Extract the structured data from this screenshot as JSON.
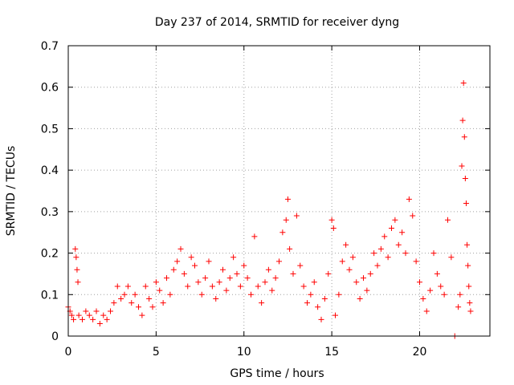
{
  "chart_data": {
    "type": "scatter",
    "title": "Day 237 of 2014, SRMTID for receiver dyng",
    "xlabel": "GPS time / hours",
    "ylabel": "SRMTID / TECUs",
    "xlim": [
      0,
      24
    ],
    "ylim": [
      0,
      0.7
    ],
    "xticks": [
      0,
      5,
      10,
      15,
      20
    ],
    "yticks": [
      0,
      0.1,
      0.2,
      0.3,
      0.4,
      0.5,
      0.6,
      0.7
    ],
    "xtick_labels": [
      "0",
      "5",
      "10",
      "15",
      "20"
    ],
    "ytick_labels": [
      "0",
      "0.1",
      "0.2",
      "0.3",
      "0.4",
      "0.5",
      "0.6",
      "0.7"
    ],
    "grid": true,
    "marker": "+",
    "series": [
      {
        "name": "SRMTID",
        "color": "#ff0000",
        "points": [
          [
            0.0,
            0.07
          ],
          [
            0.1,
            0.06
          ],
          [
            0.2,
            0.05
          ],
          [
            0.3,
            0.04
          ],
          [
            0.4,
            0.21
          ],
          [
            0.45,
            0.19
          ],
          [
            0.5,
            0.16
          ],
          [
            0.55,
            0.13
          ],
          [
            0.6,
            0.05
          ],
          [
            0.8,
            0.04
          ],
          [
            1.0,
            0.06
          ],
          [
            1.2,
            0.05
          ],
          [
            1.4,
            0.04
          ],
          [
            1.6,
            0.06
          ],
          [
            1.8,
            0.03
          ],
          [
            2.0,
            0.05
          ],
          [
            2.2,
            0.04
          ],
          [
            2.4,
            0.06
          ],
          [
            2.6,
            0.08
          ],
          [
            2.8,
            0.12
          ],
          [
            3.0,
            0.09
          ],
          [
            3.2,
            0.1
          ],
          [
            3.4,
            0.12
          ],
          [
            3.6,
            0.08
          ],
          [
            3.8,
            0.1
          ],
          [
            4.0,
            0.07
          ],
          [
            4.2,
            0.05
          ],
          [
            4.4,
            0.12
          ],
          [
            4.6,
            0.09
          ],
          [
            4.8,
            0.07
          ],
          [
            5.0,
            0.13
          ],
          [
            5.2,
            0.11
          ],
          [
            5.4,
            0.08
          ],
          [
            5.6,
            0.14
          ],
          [
            5.8,
            0.1
          ],
          [
            6.0,
            0.16
          ],
          [
            6.2,
            0.18
          ],
          [
            6.4,
            0.21
          ],
          [
            6.6,
            0.15
          ],
          [
            6.8,
            0.12
          ],
          [
            7.0,
            0.19
          ],
          [
            7.2,
            0.17
          ],
          [
            7.4,
            0.13
          ],
          [
            7.6,
            0.1
          ],
          [
            7.8,
            0.14
          ],
          [
            8.0,
            0.18
          ],
          [
            8.2,
            0.12
          ],
          [
            8.4,
            0.09
          ],
          [
            8.6,
            0.13
          ],
          [
            8.8,
            0.16
          ],
          [
            9.0,
            0.11
          ],
          [
            9.2,
            0.14
          ],
          [
            9.4,
            0.19
          ],
          [
            9.6,
            0.15
          ],
          [
            9.8,
            0.12
          ],
          [
            10.0,
            0.17
          ],
          [
            10.2,
            0.14
          ],
          [
            10.4,
            0.1
          ],
          [
            10.6,
            0.24
          ],
          [
            10.8,
            0.12
          ],
          [
            11.0,
            0.08
          ],
          [
            11.2,
            0.13
          ],
          [
            11.4,
            0.16
          ],
          [
            11.6,
            0.11
          ],
          [
            11.8,
            0.14
          ],
          [
            12.0,
            0.18
          ],
          [
            12.2,
            0.25
          ],
          [
            12.4,
            0.28
          ],
          [
            12.5,
            0.33
          ],
          [
            12.6,
            0.21
          ],
          [
            12.8,
            0.15
          ],
          [
            13.0,
            0.29
          ],
          [
            13.2,
            0.17
          ],
          [
            13.4,
            0.12
          ],
          [
            13.6,
            0.08
          ],
          [
            13.8,
            0.1
          ],
          [
            14.0,
            0.13
          ],
          [
            14.2,
            0.07
          ],
          [
            14.4,
            0.04
          ],
          [
            14.6,
            0.09
          ],
          [
            14.8,
            0.15
          ],
          [
            15.0,
            0.28
          ],
          [
            15.1,
            0.26
          ],
          [
            15.2,
            0.05
          ],
          [
            15.4,
            0.1
          ],
          [
            15.6,
            0.18
          ],
          [
            15.8,
            0.22
          ],
          [
            16.0,
            0.16
          ],
          [
            16.2,
            0.19
          ],
          [
            16.4,
            0.13
          ],
          [
            16.6,
            0.09
          ],
          [
            16.8,
            0.14
          ],
          [
            17.0,
            0.11
          ],
          [
            17.2,
            0.15
          ],
          [
            17.4,
            0.2
          ],
          [
            17.6,
            0.17
          ],
          [
            17.8,
            0.21
          ],
          [
            18.0,
            0.24
          ],
          [
            18.2,
            0.19
          ],
          [
            18.4,
            0.26
          ],
          [
            18.6,
            0.28
          ],
          [
            18.8,
            0.22
          ],
          [
            19.0,
            0.25
          ],
          [
            19.2,
            0.2
          ],
          [
            19.4,
            0.33
          ],
          [
            19.6,
            0.29
          ],
          [
            19.8,
            0.18
          ],
          [
            20.0,
            0.13
          ],
          [
            20.2,
            0.09
          ],
          [
            20.4,
            0.06
          ],
          [
            20.6,
            0.11
          ],
          [
            20.8,
            0.2
          ],
          [
            21.0,
            0.15
          ],
          [
            21.2,
            0.12
          ],
          [
            21.4,
            0.1
          ],
          [
            21.6,
            0.28
          ],
          [
            21.8,
            0.19
          ],
          [
            22.0,
            0.0
          ],
          [
            22.2,
            0.07
          ],
          [
            22.3,
            0.1
          ],
          [
            22.4,
            0.41
          ],
          [
            22.45,
            0.52
          ],
          [
            22.5,
            0.61
          ],
          [
            22.55,
            0.48
          ],
          [
            22.6,
            0.38
          ],
          [
            22.65,
            0.32
          ],
          [
            22.7,
            0.22
          ],
          [
            22.75,
            0.17
          ],
          [
            22.8,
            0.12
          ],
          [
            22.85,
            0.08
          ],
          [
            22.9,
            0.06
          ]
        ]
      }
    ]
  }
}
